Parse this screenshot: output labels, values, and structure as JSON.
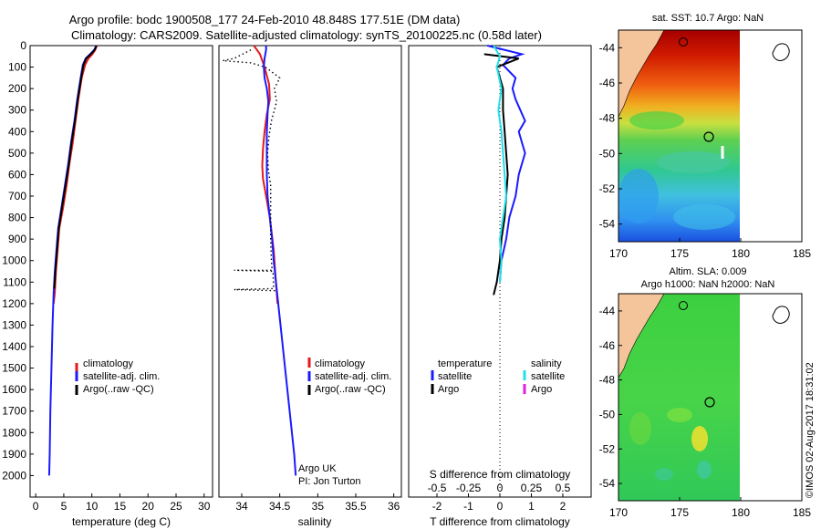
{
  "header": {
    "line1": "Argo profile: bodc 1900508_177 24-Feb-2010 48.848S 177.51E (DM data)",
    "line2": "Climatology: CARS2009. Satellite-adjusted climatology: synTS_20100225.nc (0.58d later)"
  },
  "colors": {
    "climatology": "#e41a1c",
    "satellite": "#1a1aff",
    "argo": "#000000",
    "sal_satellite": "#22e0e8",
    "sal_argo": "#e020e0",
    "land": "#f4c49a"
  },
  "chart_data": [
    {
      "type": "line",
      "title": "",
      "xlabel": "temperature (deg C)",
      "ylabel": "",
      "xlim": [
        -1,
        31.5
      ],
      "ylim": [
        2100,
        0
      ],
      "xticks": [
        "0",
        "5",
        "10",
        "15",
        "20",
        "25",
        "30"
      ],
      "yticks": [
        "0",
        "100",
        "200",
        "300",
        "400",
        "500",
        "600",
        "700",
        "800",
        "900",
        "1000",
        "1100",
        "1200",
        "1300",
        "1400",
        "1500",
        "1600",
        "1700",
        "1800",
        "1900",
        "2000"
      ],
      "legend": [
        "climatology",
        "satellite-adj. clim.",
        "Argo(..raw -QC)"
      ],
      "series": [
        {
          "name": "climatology",
          "points": [
            [
              10.9,
              0
            ],
            [
              10.6,
              20
            ],
            [
              10.1,
              40
            ],
            [
              9.4,
              60
            ],
            [
              8.8,
              90
            ],
            [
              8.2,
              150
            ],
            [
              7.6,
              250
            ],
            [
              7.1,
              350
            ],
            [
              6.6,
              450
            ],
            [
              6.0,
              550
            ],
            [
              5.5,
              650
            ],
            [
              4.9,
              750
            ],
            [
              4.2,
              850
            ],
            [
              3.9,
              950
            ],
            [
              3.6,
              1050
            ],
            [
              3.4,
              1150
            ],
            [
              3.2,
              1200
            ]
          ]
        },
        {
          "name": "satellite-adj. clim.",
          "points": [
            [
              10.8,
              0
            ],
            [
              10.4,
              20
            ],
            [
              9.7,
              40
            ],
            [
              8.9,
              60
            ],
            [
              8.4,
              90
            ],
            [
              8.0,
              150
            ],
            [
              7.4,
              250
            ],
            [
              6.9,
              350
            ],
            [
              6.3,
              450
            ],
            [
              5.8,
              550
            ],
            [
              5.2,
              650
            ],
            [
              4.6,
              750
            ],
            [
              4.0,
              850
            ],
            [
              3.7,
              950
            ],
            [
              3.4,
              1050
            ],
            [
              3.2,
              1150
            ],
            [
              3.0,
              1300
            ],
            [
              2.8,
              1500
            ],
            [
              2.6,
              1700
            ],
            [
              2.5,
              1900
            ],
            [
              2.4,
              2000
            ]
          ]
        },
        {
          "name": "Argo(..raw -QC)",
          "points": [
            [
              10.8,
              0
            ],
            [
              10.5,
              20
            ],
            [
              9.8,
              40
            ],
            [
              9.0,
              60
            ],
            [
              8.5,
              90
            ],
            [
              8.1,
              150
            ],
            [
              7.5,
              250
            ],
            [
              7.0,
              350
            ],
            [
              6.4,
              450
            ],
            [
              5.9,
              550
            ],
            [
              5.3,
              650
            ],
            [
              4.7,
              750
            ],
            [
              4.1,
              850
            ],
            [
              3.8,
              950
            ],
            [
              3.5,
              1050
            ],
            [
              3.3,
              1130
            ]
          ]
        }
      ]
    },
    {
      "type": "line",
      "title": "",
      "xlabel": "salinity",
      "ylabel": "",
      "xlim": [
        33.7,
        36.1
      ],
      "ylim": [
        2100,
        0
      ],
      "xticks": [
        "34",
        "34.5",
        "35",
        "35.5",
        "36"
      ],
      "legend": [
        "climatology",
        "satellite-adj. clim.",
        "Argo(..raw -QC)"
      ],
      "annotation": [
        "Argo UK",
        "PI: Jon Turton"
      ],
      "series": [
        {
          "name": "climatology",
          "points": [
            [
              34.16,
              0
            ],
            [
              34.24,
              40
            ],
            [
              34.3,
              100
            ],
            [
              34.36,
              180
            ],
            [
              34.37,
              250
            ],
            [
              34.33,
              320
            ],
            [
              34.3,
              400
            ],
            [
              34.28,
              480
            ],
            [
              34.27,
              560
            ],
            [
              34.28,
              620
            ],
            [
              34.32,
              700
            ],
            [
              34.37,
              800
            ],
            [
              34.42,
              950
            ],
            [
              34.45,
              1100
            ],
            [
              34.47,
              1200
            ]
          ]
        },
        {
          "name": "satellite-adj. clim.",
          "points": [
            [
              34.32,
              0
            ],
            [
              34.32,
              20
            ],
            [
              34.3,
              60
            ],
            [
              34.29,
              100
            ],
            [
              34.3,
              150
            ],
            [
              34.33,
              200
            ],
            [
              34.35,
              260
            ],
            [
              34.34,
              320
            ],
            [
              34.33,
              400
            ],
            [
              34.33,
              500
            ],
            [
              34.33,
              600
            ],
            [
              34.34,
              700
            ],
            [
              34.37,
              800
            ],
            [
              34.4,
              900
            ],
            [
              34.42,
              1000
            ],
            [
              34.45,
              1100
            ],
            [
              34.48,
              1200
            ],
            [
              34.51,
              1300
            ],
            [
              34.54,
              1400
            ],
            [
              34.57,
              1500
            ],
            [
              34.6,
              1600
            ],
            [
              34.63,
              1700
            ],
            [
              34.66,
              1800
            ],
            [
              34.69,
              1900
            ],
            [
              34.71,
              2000
            ]
          ]
        },
        {
          "name": "Argo(..raw -QC)",
          "style": "dotted",
          "points": [
            [
              34.12,
              20
            ],
            [
              33.9,
              60
            ],
            [
              33.75,
              70
            ],
            [
              34.12,
              80
            ],
            [
              34.31,
              100
            ],
            [
              34.5,
              150
            ],
            [
              34.43,
              200
            ],
            [
              34.46,
              260
            ],
            [
              34.43,
              300
            ],
            [
              34.39,
              350
            ],
            [
              34.36,
              420
            ],
            [
              34.34,
              500
            ],
            [
              34.35,
              580
            ],
            [
              34.38,
              650
            ],
            [
              34.38,
              700
            ],
            [
              34.38,
              800
            ],
            [
              34.38,
              900
            ],
            [
              34.39,
              1000
            ],
            [
              34.4,
              1045
            ],
            [
              33.9,
              1045
            ],
            [
              34.41,
              1050
            ],
            [
              34.42,
              1130
            ],
            [
              33.9,
              1135
            ],
            [
              34.44,
              1140
            ]
          ]
        }
      ]
    },
    {
      "type": "line",
      "title": "",
      "xlabel": "T difference from climatology",
      "xlabel_top": "S difference from climatology",
      "xlim": [
        -2.9,
        2.9
      ],
      "ylim": [
        2100,
        0
      ],
      "xticks": [
        "-2",
        "-1",
        "0",
        "1",
        "2"
      ],
      "xticks_top": [
        "-0.5",
        "-0.25",
        "0",
        "0.25",
        "0.5"
      ],
      "legend_temperature": {
        "title": "temperature",
        "items": [
          "satellite",
          "Argo"
        ]
      },
      "legend_salinity": {
        "title": "salinity",
        "items": [
          "satellite",
          "Argo"
        ]
      },
      "series": [
        {
          "name": "temperature satellite",
          "points": [
            [
              -0.4,
              0
            ],
            [
              0.7,
              40
            ],
            [
              0.3,
              60
            ],
            [
              0.1,
              90
            ],
            [
              0.5,
              150
            ],
            [
              0.4,
              200
            ],
            [
              0.5,
              250
            ],
            [
              0.8,
              350
            ],
            [
              0.6,
              400
            ],
            [
              0.7,
              450
            ],
            [
              0.8,
              500
            ],
            [
              0.6,
              600
            ],
            [
              0.5,
              700
            ],
            [
              0.3,
              800
            ],
            [
              0.2,
              900
            ],
            [
              0.05,
              1000
            ],
            [
              0.0,
              1100
            ]
          ]
        },
        {
          "name": "temperature Argo",
          "points": [
            [
              -0.5,
              40
            ],
            [
              0.6,
              60
            ],
            [
              -0.1,
              100
            ],
            [
              0.1,
              200
            ],
            [
              0.1,
              300
            ],
            [
              0.15,
              400
            ],
            [
              0.2,
              500
            ],
            [
              0.25,
              600
            ],
            [
              0.2,
              700
            ],
            [
              0.15,
              800
            ],
            [
              0.05,
              900
            ],
            [
              0.0,
              1000
            ],
            [
              -0.1,
              1100
            ],
            [
              -0.2,
              1160
            ]
          ]
        },
        {
          "name": "salinity satellite",
          "points": [
            [
              -0.2,
              0
            ],
            [
              0.0,
              50
            ],
            [
              -0.1,
              100
            ],
            [
              0.05,
              200
            ],
            [
              -0.05,
              300
            ],
            [
              0.05,
              400
            ],
            [
              0.1,
              500
            ],
            [
              0.15,
              600
            ],
            [
              0.2,
              700
            ],
            [
              0.1,
              800
            ],
            [
              0.0,
              900
            ],
            [
              0.05,
              1000
            ],
            [
              0.0,
              1100
            ]
          ]
        }
      ]
    },
    {
      "type": "heatmap",
      "title": "sat. SST: 10.7  Argo: NaN",
      "xlim": [
        170,
        185
      ],
      "ylim": [
        -55,
        -43
      ],
      "xticks": [
        "170",
        "175",
        "180",
        "185"
      ],
      "yticks": [
        "-44",
        "-46",
        "-48",
        "-50",
        "-52",
        "-54"
      ],
      "float_lon": 177.51,
      "float_lat": -48.848
    },
    {
      "type": "heatmap",
      "title": "Altim. SLA: 0.009",
      "subtitle": "Argo h1000: NaN h2000: NaN",
      "xlim": [
        170,
        185
      ],
      "ylim": [
        -55,
        -43
      ],
      "xticks": [
        "170",
        "175",
        "180",
        "185"
      ],
      "yticks": [
        "-44",
        "-46",
        "-48",
        "-50",
        "-52",
        "-54"
      ],
      "float_lon": 177.51,
      "float_lat": -48.848
    }
  ],
  "footer": {
    "stamp": "©IMOS 02-Aug-2017 18:31:02"
  }
}
